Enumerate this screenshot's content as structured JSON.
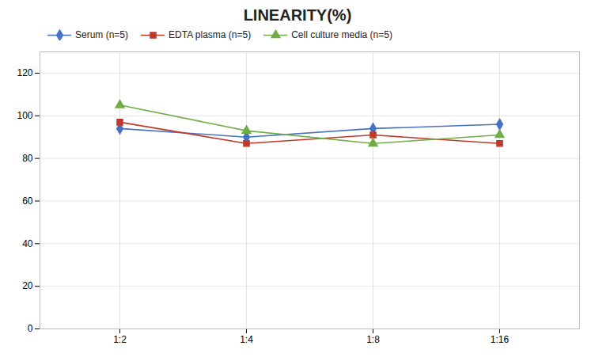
{
  "chart_data": {
    "type": "line",
    "title": "LINEARITY(%)",
    "categories": [
      "1:2",
      "1:4",
      "1:8",
      "1:16"
    ],
    "series": [
      {
        "name": "Serum (n=5)",
        "color": "#4472C4",
        "marker": "diamond",
        "values": [
          94,
          90,
          94,
          96
        ]
      },
      {
        "name": "EDTA plasma (n=5)",
        "color": "#C0392B",
        "marker": "square",
        "values": [
          97,
          87,
          91,
          87
        ]
      },
      {
        "name": "Cell culture media (n=5)",
        "color": "#70AD47",
        "marker": "triangle",
        "values": [
          105,
          93,
          87,
          91
        ]
      }
    ],
    "ylim": [
      0,
      130
    ],
    "yticks": [
      0,
      20,
      40,
      60,
      80,
      100,
      120
    ],
    "grid": true,
    "legend": "top"
  }
}
